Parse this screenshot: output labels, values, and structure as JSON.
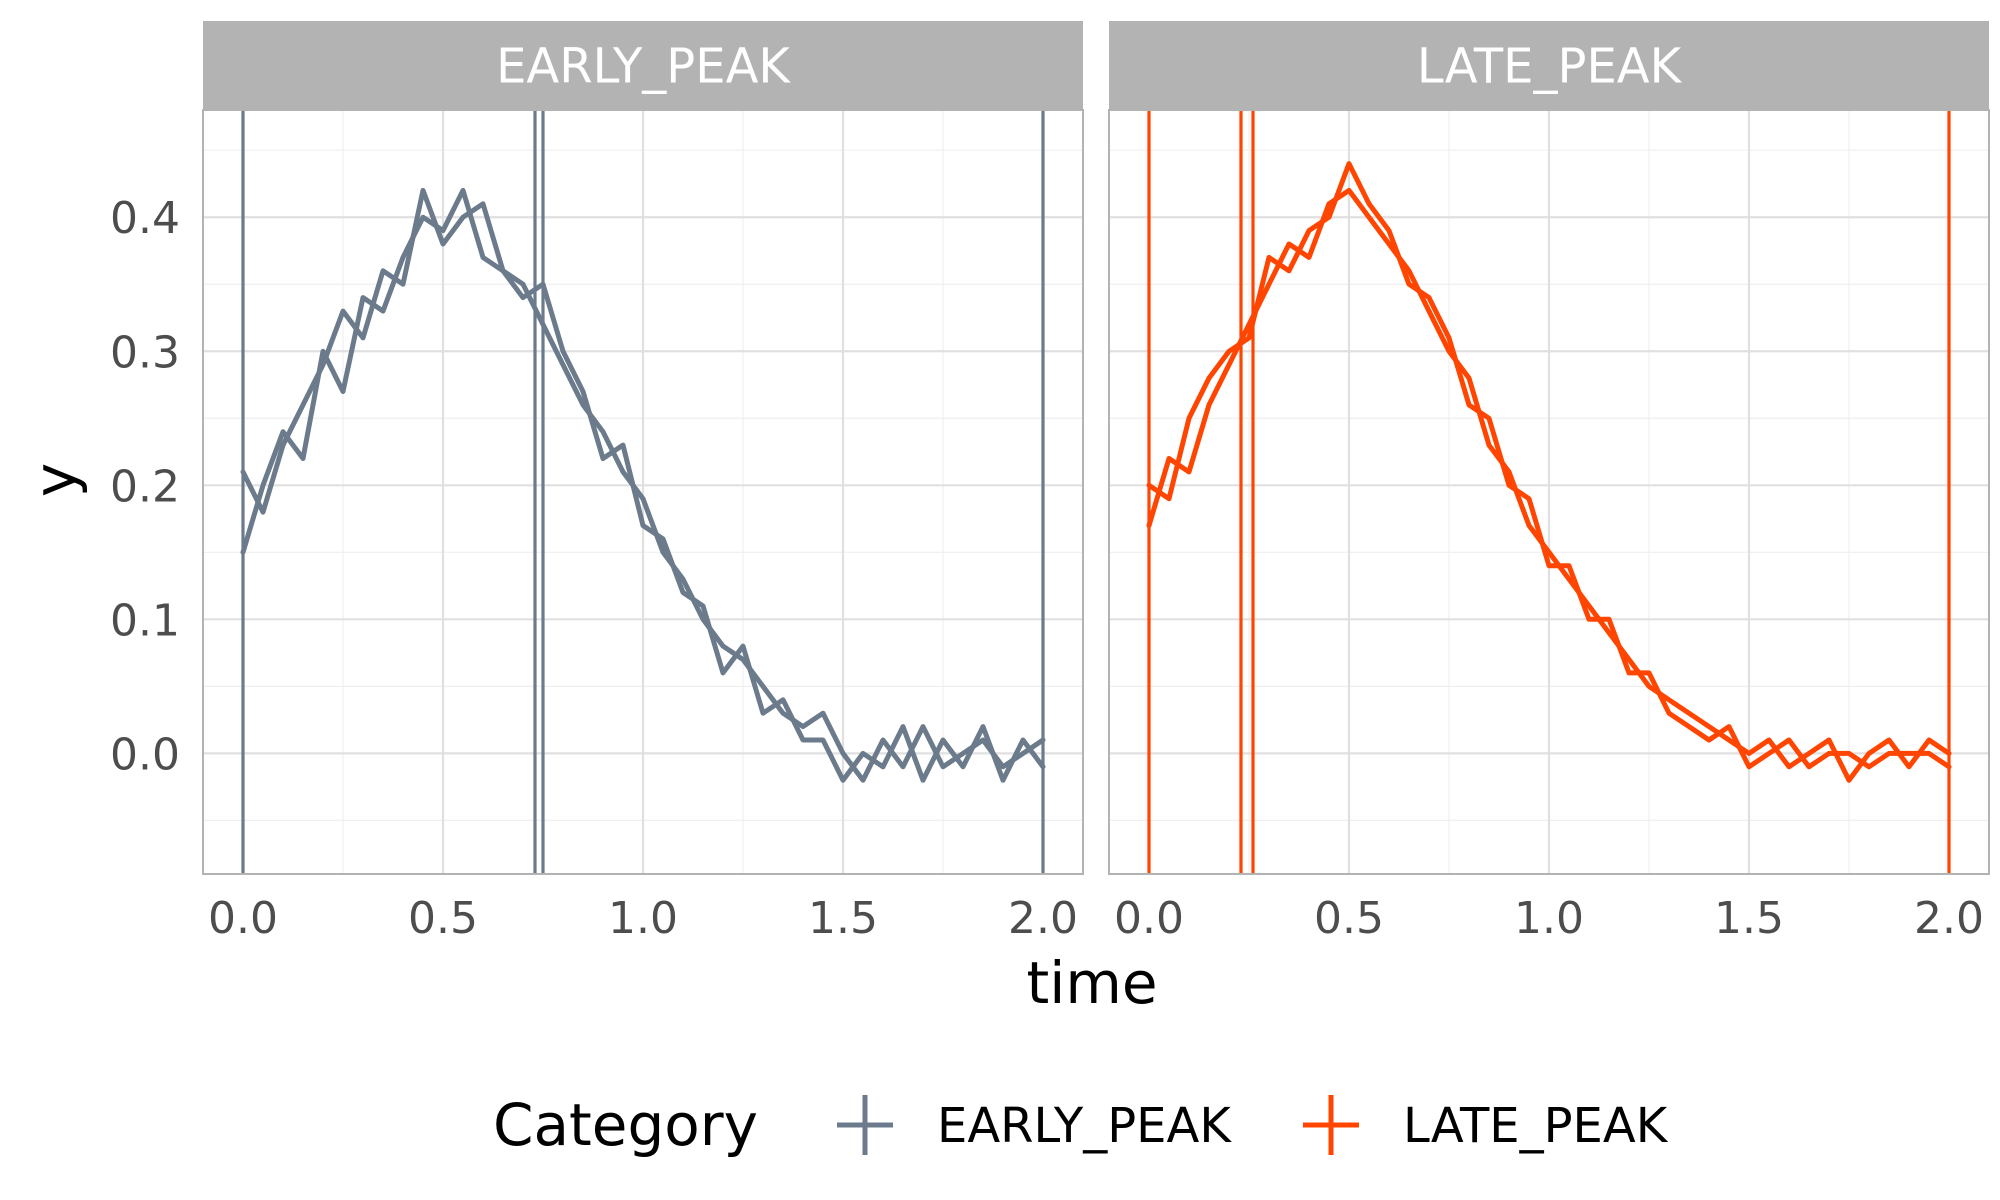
{
  "chart_data": {
    "type": "line",
    "facet_by": "Category",
    "xlabel": "time",
    "ylabel": "y",
    "xlim": [
      -0.1,
      2.1
    ],
    "ylim": [
      -0.09,
      0.48
    ],
    "x_ticks": [
      "0.0",
      "0.5",
      "1.0",
      "1.5",
      "2.0"
    ],
    "y_ticks": [
      "0.0",
      "0.1",
      "0.2",
      "0.3",
      "0.4"
    ],
    "grid": true,
    "legend": {
      "title": "Category",
      "position": "bottom",
      "items": [
        "EARLY_PEAK",
        "LATE_PEAK"
      ]
    },
    "panels": [
      {
        "strip": "EARLY_PEAK",
        "color": "#6b7b8c",
        "vlines": [
          0.0,
          0.73,
          0.75,
          2.0
        ],
        "series": [
          {
            "name": "EARLY_PEAK",
            "x": [
              0.0,
              0.05,
              0.1,
              0.15,
              0.2,
              0.25,
              0.3,
              0.35,
              0.4,
              0.45,
              0.5,
              0.55,
              0.6,
              0.65,
              0.7,
              0.75,
              0.8,
              0.85,
              0.9,
              0.95,
              1.0,
              1.05,
              1.1,
              1.15,
              1.2,
              1.25,
              1.3,
              1.35,
              1.4,
              1.45,
              1.5,
              1.55,
              1.6,
              1.65,
              1.7,
              1.75,
              1.8,
              1.85,
              1.9,
              1.95,
              2.0
            ],
            "y": [
              0.15,
              0.2,
              0.24,
              0.22,
              0.3,
              0.27,
              0.34,
              0.33,
              0.37,
              0.4,
              0.39,
              0.42,
              0.37,
              0.36,
              0.35,
              0.32,
              0.29,
              0.26,
              0.24,
              0.21,
              0.19,
              0.15,
              0.13,
              0.1,
              0.08,
              0.07,
              0.05,
              0.03,
              0.02,
              0.03,
              0.0,
              -0.02,
              0.01,
              -0.01,
              0.02,
              -0.01,
              0.0,
              0.01,
              -0.01,
              0.0,
              0.01
            ]
          },
          {
            "name": "EARLY_PEAK",
            "x": [
              0.0,
              0.05,
              0.1,
              0.15,
              0.2,
              0.25,
              0.3,
              0.35,
              0.4,
              0.45,
              0.5,
              0.55,
              0.6,
              0.65,
              0.7,
              0.75,
              0.8,
              0.85,
              0.9,
              0.95,
              1.0,
              1.05,
              1.1,
              1.15,
              1.2,
              1.25,
              1.3,
              1.35,
              1.4,
              1.45,
              1.5,
              1.55,
              1.6,
              1.65,
              1.7,
              1.75,
              1.8,
              1.85,
              1.9,
              1.95,
              2.0
            ],
            "y": [
              0.21,
              0.18,
              0.23,
              0.26,
              0.29,
              0.33,
              0.31,
              0.36,
              0.35,
              0.42,
              0.38,
              0.4,
              0.41,
              0.36,
              0.34,
              0.35,
              0.3,
              0.27,
              0.22,
              0.23,
              0.17,
              0.16,
              0.12,
              0.11,
              0.06,
              0.08,
              0.03,
              0.04,
              0.01,
              0.01,
              -0.02,
              0.0,
              -0.01,
              0.02,
              -0.02,
              0.01,
              -0.01,
              0.02,
              -0.02,
              0.01,
              -0.01
            ]
          }
        ]
      },
      {
        "strip": "LATE_PEAK",
        "color": "#ff4500",
        "vlines": [
          0.0,
          0.23,
          0.26,
          2.0
        ],
        "series": [
          {
            "name": "LATE_PEAK",
            "x": [
              0.0,
              0.05,
              0.1,
              0.15,
              0.2,
              0.25,
              0.3,
              0.35,
              0.4,
              0.45,
              0.5,
              0.55,
              0.6,
              0.65,
              0.7,
              0.75,
              0.8,
              0.85,
              0.9,
              0.95,
              1.0,
              1.05,
              1.1,
              1.15,
              1.2,
              1.25,
              1.3,
              1.35,
              1.4,
              1.45,
              1.5,
              1.55,
              1.6,
              1.65,
              1.7,
              1.75,
              1.8,
              1.85,
              1.9,
              1.95,
              2.0
            ],
            "y": [
              0.17,
              0.22,
              0.21,
              0.26,
              0.29,
              0.32,
              0.35,
              0.38,
              0.37,
              0.41,
              0.42,
              0.4,
              0.38,
              0.36,
              0.33,
              0.3,
              0.28,
              0.23,
              0.21,
              0.17,
              0.15,
              0.13,
              0.11,
              0.09,
              0.07,
              0.05,
              0.04,
              0.03,
              0.02,
              0.01,
              0.0,
              0.01,
              -0.01,
              0.0,
              0.01,
              -0.02,
              0.0,
              0.01,
              -0.01,
              0.01,
              0.0
            ]
          },
          {
            "name": "LATE_PEAK",
            "x": [
              0.0,
              0.05,
              0.1,
              0.15,
              0.2,
              0.25,
              0.3,
              0.35,
              0.4,
              0.45,
              0.5,
              0.55,
              0.6,
              0.65,
              0.7,
              0.75,
              0.8,
              0.85,
              0.9,
              0.95,
              1.0,
              1.05,
              1.1,
              1.15,
              1.2,
              1.25,
              1.3,
              1.35,
              1.4,
              1.45,
              1.5,
              1.55,
              1.6,
              1.65,
              1.7,
              1.75,
              1.8,
              1.85,
              1.9,
              1.95,
              2.0
            ],
            "y": [
              0.2,
              0.19,
              0.25,
              0.28,
              0.3,
              0.31,
              0.37,
              0.36,
              0.39,
              0.4,
              0.44,
              0.41,
              0.39,
              0.35,
              0.34,
              0.31,
              0.26,
              0.25,
              0.2,
              0.19,
              0.14,
              0.14,
              0.1,
              0.1,
              0.06,
              0.06,
              0.03,
              0.02,
              0.01,
              0.02,
              -0.01,
              0.0,
              0.01,
              -0.01,
              0.0,
              0.0,
              -0.01,
              0.0,
              0.0,
              0.0,
              -0.01
            ]
          }
        ]
      }
    ]
  }
}
